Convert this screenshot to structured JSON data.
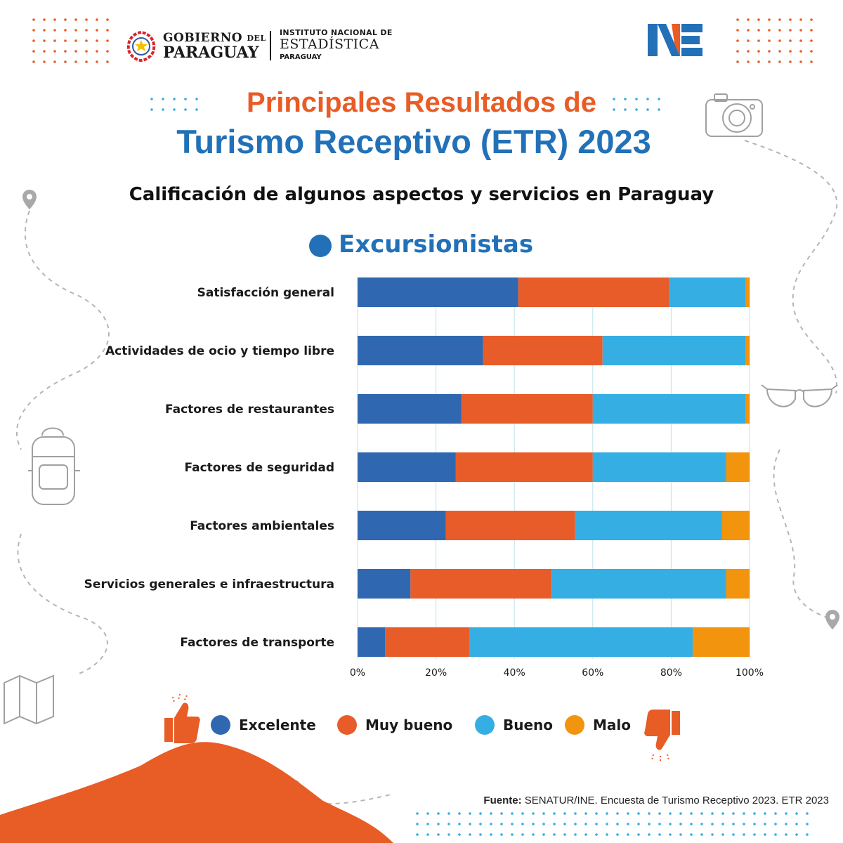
{
  "header": {
    "gobierno_line1": "GOBIERNO",
    "gobierno_del": "DEL",
    "gobierno_line2": "PARAGUAY",
    "ine_line1": "INSTITUTO NACIONAL DE",
    "ine_line2": "ESTADÍSTICA",
    "ine_line3": "PARAGUAY"
  },
  "title_line1": "Principales Resultados de",
  "title_line2": "Turismo Receptivo (ETR) 2023",
  "colors": {
    "excelente": "#2f68b0",
    "muy_bueno": "#e85c2a",
    "bueno": "#35aee3",
    "malo": "#f2940d",
    "title_orange": "#e85c26",
    "title_blue": "#2271b8"
  },
  "chart_data": {
    "type": "bar",
    "orientation": "horizontal",
    "stacked": true,
    "title": "Calificación de algunos aspectos y servicios en Paraguay",
    "subtitle": "Excursionistas",
    "categories": [
      "Satisfacción general",
      "Actividades de ocio y tiempo libre",
      "Factores de restaurantes",
      "Factores de seguridad",
      "Factores ambientales",
      "Servicios generales e infraestructura",
      "Factores de transporte"
    ],
    "series": [
      {
        "name": "Excelente",
        "values": [
          41,
          32,
          26.5,
          25,
          22.5,
          13.5,
          7
        ]
      },
      {
        "name": "Muy bueno",
        "values": [
          38.5,
          30.5,
          33.5,
          35,
          33,
          36,
          21.5
        ]
      },
      {
        "name": "Bueno",
        "values": [
          19.5,
          36.5,
          39,
          34,
          37.5,
          44.5,
          57
        ]
      },
      {
        "name": "Malo",
        "values": [
          1,
          1,
          1,
          6,
          7,
          6,
          14.5
        ]
      }
    ],
    "xlim": [
      0,
      100
    ],
    "x_ticks": [
      "0%",
      "20%",
      "40%",
      "60%",
      "80%",
      "100%"
    ],
    "grid": true,
    "legend_position": "bottom"
  },
  "source_label": "Fuente:",
  "source_text": " SENATUR/INE. Encuesta de Turismo Receptivo 2023. ETR 2023"
}
